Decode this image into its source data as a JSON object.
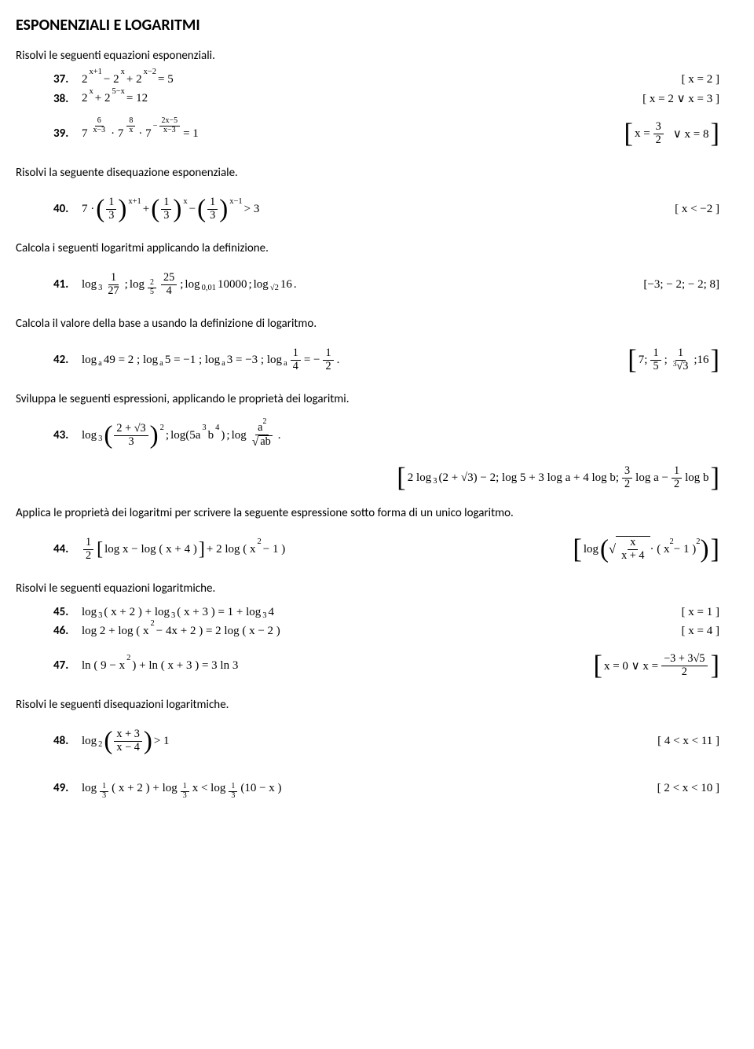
{
  "title": "ESPONENZIALI E LOGARITMI",
  "section1": "Risolvi le seguenti equazioni esponenziali.",
  "p37": {
    "num": "37.",
    "eq": "2",
    "sup1": "x+1",
    "m": " − 2",
    "sup2": "x",
    "m2": " + 2",
    "sup3": "x−2",
    "eq2": " = 5",
    "ans": "[ x = 2 ]"
  },
  "p38": {
    "num": "38.",
    "eq": "2",
    "sup1": "x",
    "m": " + 2",
    "sup2": "5−x",
    "eq2": " = 12",
    "ans": "[ x = 2  ∨  x = 3 ]"
  },
  "p39": {
    "num": "39.",
    "ans_l": "x =",
    "ans_frac_n": "3",
    "ans_frac_d": "2",
    "ans_r": "∨  x = 8"
  },
  "section2": "Risolvi la seguente disequazione esponenziale.",
  "p40": {
    "num": "40.",
    "seven": "7 ·",
    "frac_n": "1",
    "frac_d": "3",
    "sup1": "x+1",
    "plus": " + ",
    "sup2": "x",
    "minus": " − ",
    "sup3": "x−1",
    "gt": " > 3",
    "ans": "[ x < −2 ]"
  },
  "section3": "Calcola i seguenti logaritmi applicando la definizione.",
  "p41": {
    "num": "41.",
    "log1": "log",
    "log1_b": "3",
    "frac1_n": "1",
    "frac1_d": "27",
    "sep": " ;  ",
    "log2": "log",
    "frac2a_n": "2",
    "frac2a_d": "5",
    "frac2_n": "25",
    "frac2_d": "4",
    "log3": "log",
    "log3_b": "0,01",
    "log3_arg": "10000",
    "log4": "log",
    "log4_arg": "16",
    "dot": " .",
    "ans": "[−3; − 2; − 2; 8]"
  },
  "section4": "Calcola il valore della base a usando la definizione di logaritmo.",
  "p42": {
    "num": "42.",
    "e1": "log",
    "a": "a",
    "e1b": " 49 = 2 ;  log",
    "e2b": " 5 = −1 ;  log",
    "e3b": " 3 = −3 ;  log",
    "frac1_n": "1",
    "frac1_d": "4",
    "eqm": " = −",
    "frac2_n": "1",
    "frac2_d": "2",
    "dot": " .",
    "ans_l": "7;",
    "ans_f1_n": "1",
    "ans_f1_d": "5",
    "ans_sep": ";",
    "ans_f2_n": "1",
    "ans_root3": "3",
    "ans_r": ";16"
  },
  "section5": "Sviluppa le seguenti espressioni, applicando le proprietà dei logaritmi.",
  "p43": {
    "num": "43.",
    "log1": "log",
    "log1_b": "3",
    "frac1_n": "2 + √3",
    "frac1_d": "3",
    "sup2": "2",
    "sep": " ;  ",
    "log2": "log(5a",
    "log2_s1": "3",
    "log2_m": "b",
    "log2_s2": "4",
    "log2_e": " )",
    "log3": "log",
    "frac3_n": "a",
    "frac3_n_sup": "2",
    "sqrt_arg": "ab",
    "dot": " ."
  },
  "p43_ans": {
    "l": "2 log",
    "b": "3",
    "p": "(2 + √3) − 2; log 5 + 3 log a + 4 log b; ",
    "f1_n": "3",
    "f1_d": "2",
    "m": " log a − ",
    "f2_n": "1",
    "f2_d": "2",
    "r": " log b"
  },
  "section6": "Applica le proprietà dei logaritmi per scrivere la seguente espressione sotto forma di un unico logaritmo.",
  "p44": {
    "num": "44.",
    "frac_n": "1",
    "frac_d": "2",
    "br_l": "[",
    "e1": "log x − log ( x + 4 )",
    "br_r": "]",
    "e2": " + 2 log ( x",
    "sup": "2",
    "e3": " − 1 )",
    "ans_log": "log",
    "ans_sqrt_n": "x",
    "ans_sqrt_d": "x + 4",
    "ans_dot": " · ( x",
    "ans_sup": "2",
    "ans_m": " − 1 )",
    "ans_sup2": "2"
  },
  "section7": "Risolvi le seguenti equazioni logaritmiche.",
  "p45": {
    "num": "45.",
    "e": "log",
    "b": "3",
    "e1": " ( x + 2 ) + log",
    "e2": " ( x + 3 ) = 1 + log",
    "e3": " 4",
    "ans": "[ x = 1 ]"
  },
  "p46": {
    "num": "46.",
    "e": "log 2 + log ( x",
    "s1": "2",
    "e1": " − 4x + 2 ) = 2 log ( x − 2 )",
    "ans": "[ x = 4 ]"
  },
  "p47": {
    "num": "47.",
    "e": "ln ( 9 − x",
    "s1": "2",
    "e1": " ) + ln ( x + 3 ) = 3 ln 3",
    "ans_l": "x = 0  ∨  x =",
    "ans_n": "−3 + 3√5",
    "ans_d": "2"
  },
  "section8": "Risolvi le seguenti disequazioni logaritmiche.",
  "p48": {
    "num": "48.",
    "log": "log",
    "b": "2",
    "frac_n": "x + 3",
    "frac_d": "x − 4",
    "gt": " > 1",
    "ans": "[ 4 < x < 11 ]"
  },
  "p49": {
    "num": "49.",
    "log": "log",
    "b_n": "1",
    "b_d": "3",
    "e1": " ( x + 2 ) + log",
    "e2": " x < log",
    "e3": " (10 − x )",
    "ans": "[ 2 < x < 10 ]"
  }
}
